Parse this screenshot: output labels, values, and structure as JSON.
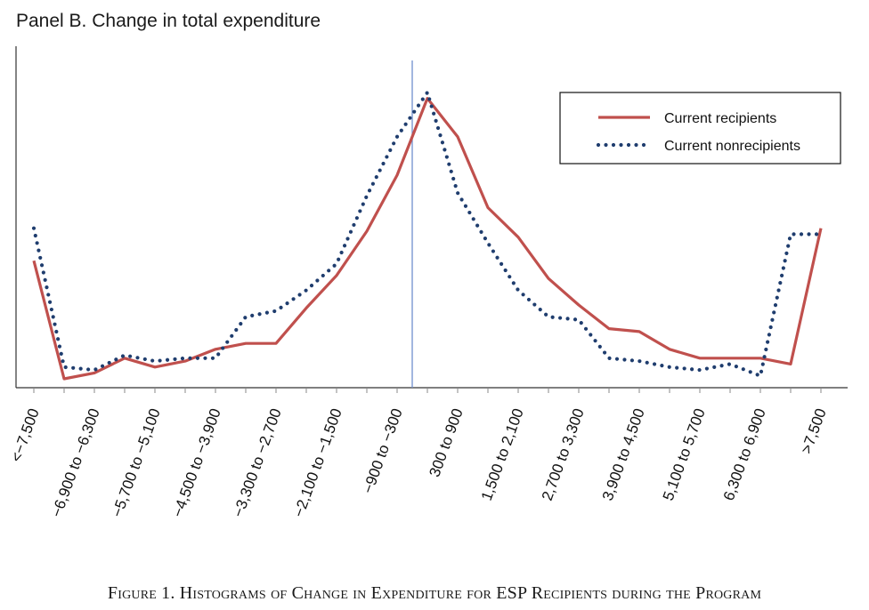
{
  "panel": {
    "title": "Panel B. Change in total expenditure"
  },
  "caption": "Figure 1. Histograms of Change in Expenditure for ESP Recipients during the Program",
  "chart_data": {
    "type": "line",
    "title": "Panel B. Change in total expenditure",
    "xlabel": "",
    "ylabel": "",
    "grid": false,
    "legend_position": "top-right",
    "vertical_reference_line": "between -900 to -300 and 300 to 900",
    "tick_labels": [
      "<−7,500",
      "−6,900 to −6,300",
      "−5,700 to −5,100",
      "−4,500 to −3,900",
      "−3,300 to −2,700",
      "−2,100 to −1,500",
      "−900 to −300",
      "300 to 900",
      "1,500 to 2,100",
      "2,700 to 3,300",
      "3,900 to 4,500",
      "5,100 to 5,700",
      "6,300 to 6,900",
      ">7,500"
    ],
    "bin_count": 27,
    "series": [
      {
        "name": "Current recipients",
        "style": "solid",
        "color": "#c0504d",
        "values": [
          0.43,
          0.03,
          0.05,
          0.1,
          0.07,
          0.09,
          0.13,
          0.15,
          0.15,
          0.27,
          0.38,
          0.53,
          0.72,
          0.98,
          0.85,
          0.61,
          0.51,
          0.37,
          0.28,
          0.2,
          0.19,
          0.13,
          0.1,
          0.1,
          0.1,
          0.08,
          0.54
        ]
      },
      {
        "name": "Current nonrecipients",
        "style": "dotted",
        "color": "#1f3d6e",
        "values": [
          0.54,
          0.07,
          0.06,
          0.11,
          0.09,
          0.1,
          0.1,
          0.24,
          0.26,
          0.33,
          0.42,
          0.65,
          0.85,
          1.0,
          0.66,
          0.49,
          0.33,
          0.24,
          0.23,
          0.1,
          0.09,
          0.07,
          0.06,
          0.08,
          0.04,
          0.52,
          0.52
        ]
      }
    ]
  },
  "colors": {
    "axis": "#333333",
    "reference_line": "#6f8fce"
  }
}
